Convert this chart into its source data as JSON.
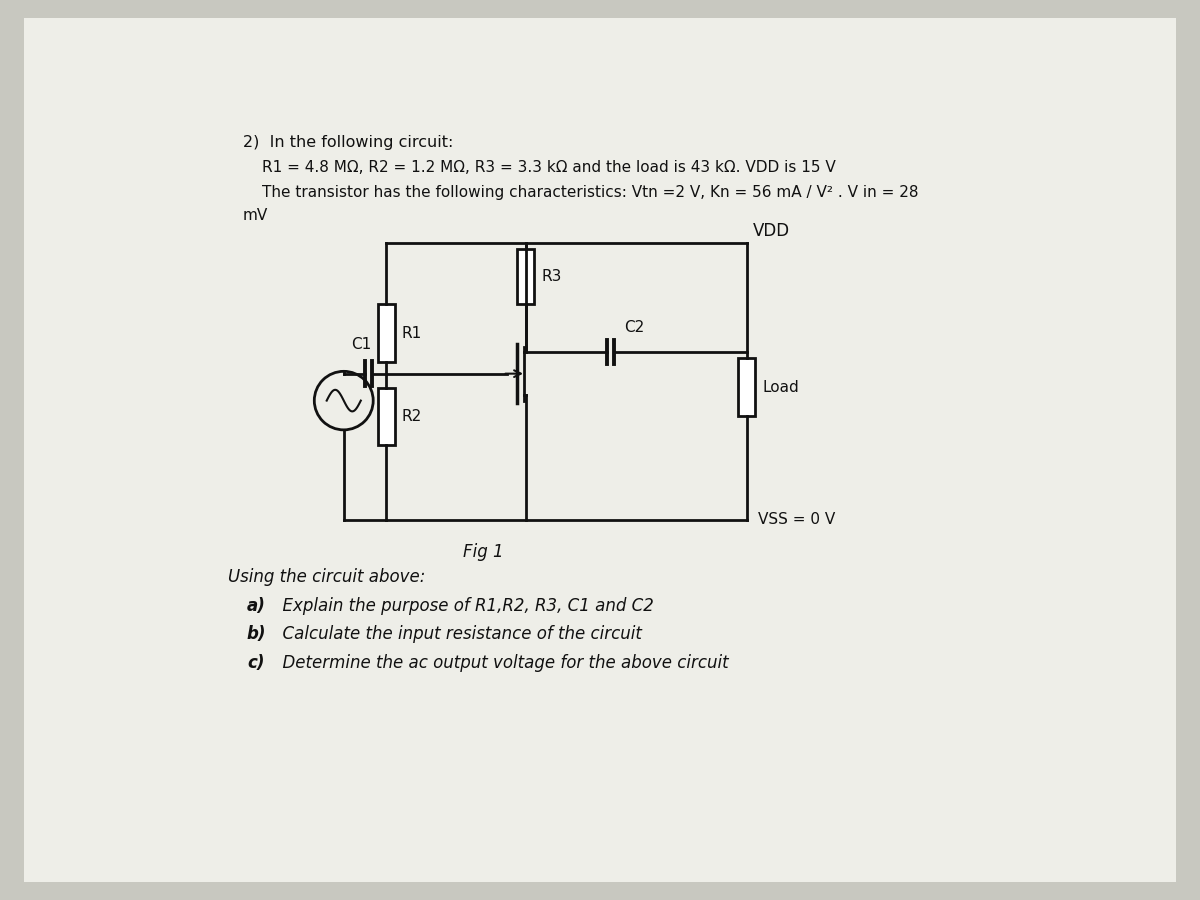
{
  "bg_color": "#c8c8c0",
  "paper_color": "#ebebе6",
  "title_line1": "2)  In the following circuit:",
  "title_line2": "R1 = 4.8 MΩ, R2 = 1.2 MΩ, R3 = 3.3 kΩ and the load is 43 kΩ. VDD is 15 V",
  "title_line3": "The transistor has the following characteristics: Vtn =2 V, Kn = 56 mA / V² . V in = 28",
  "title_line4": "mV",
  "fig_caption": "Fig 1",
  "vdd_label": "VDD",
  "vss_label": "VSS = 0 V",
  "r1_label": "R1",
  "r2_label": "R2",
  "r3_label": "R3",
  "c1_label": "C1",
  "c2_label": "C2",
  "load_label": "Load",
  "questions_header": "Using the circuit above:",
  "q_a_bold": "a)",
  "q_a_text": "  Explain the purpose of R1,R2, R3, C1 and C2",
  "q_b_bold": "b)",
  "q_b_text": "  Calculate the input resistance of the circuit",
  "q_c_bold": "c)",
  "q_c_text": "  Determine the ac output voltage for the above circuit",
  "line_color": "#111111",
  "text_color": "#111111"
}
